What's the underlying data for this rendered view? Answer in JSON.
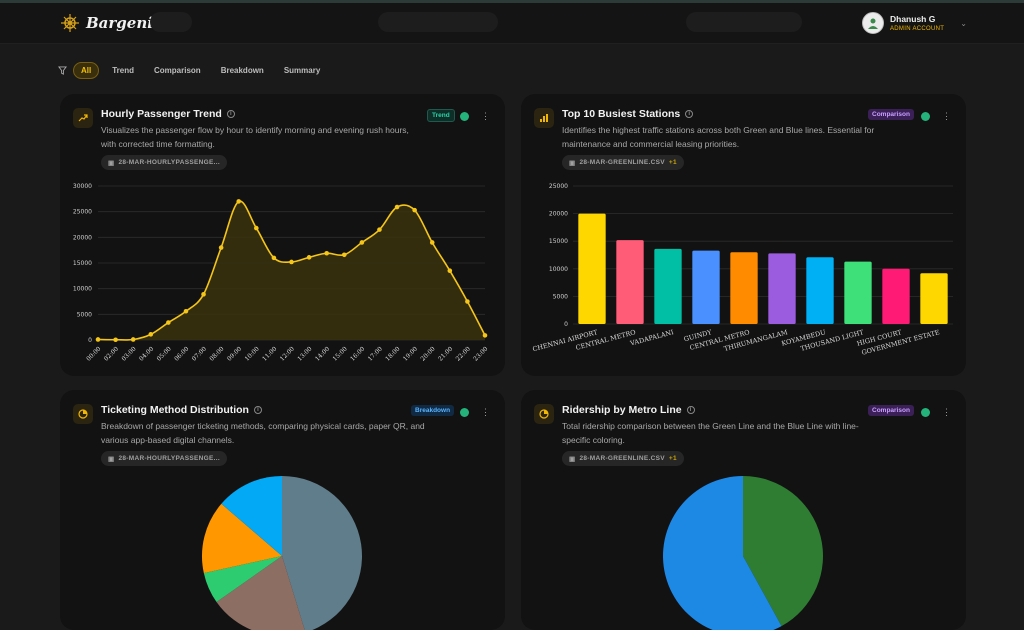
{
  "app": {
    "name": "Bargenic"
  },
  "user": {
    "name": "Dhanush G",
    "role": "ADMIN ACCOUNT"
  },
  "filters": [
    "All",
    "Trend",
    "Comparison",
    "Breakdown",
    "Summary"
  ],
  "cards": {
    "hourly": {
      "title": "Hourly Passenger Trend",
      "badge": "Trend",
      "description_line1": "Visualizes the passenger flow by hour to identify morning and evening rush hours,",
      "description_line2": "with corrected time formatting.",
      "file": "28-MAR-HOURLYPASSENGE..."
    },
    "stations": {
      "title": "Top 10 Busiest Stations",
      "badge": "Comparison",
      "description_line1": "Identifies the highest traffic stations across both Green and Blue lines. Essential for",
      "description_line2": "maintenance and commercial leasing priorities.",
      "file": "28-MAR-GREENLINE.CSV",
      "file_extra": "+1"
    },
    "ticketing": {
      "title": "Ticketing Method Distribution",
      "badge": "Breakdown",
      "description_line1": "Breakdown of passenger ticketing methods, comparing physical cards, paper QR, and",
      "description_line2": "various app-based digital channels.",
      "file": "28-MAR-HOURLYPASSENGE..."
    },
    "ridership": {
      "title": "Ridership by Metro Line",
      "badge": "Comparison",
      "description_line1": "Total ridership comparison between the Green Line and the Blue Line with line-",
      "description_line2": "specific coloring.",
      "file": "28-MAR-GREENLINE.CSV",
      "file_extra": "+1"
    }
  },
  "colors": {
    "accent": "#f2c00a",
    "background": "#1a1a1a",
    "card": "#121212"
  },
  "chart_data": [
    {
      "type": "area",
      "x": [
        "00:00",
        "02:00",
        "03:00",
        "04:00",
        "05:00",
        "06:00",
        "07:00",
        "08:00",
        "09:00",
        "10:00",
        "11:00",
        "12:00",
        "13:00",
        "14:00",
        "15:00",
        "16:00",
        "17:00",
        "18:00",
        "19:00",
        "20:00",
        "21:00",
        "22:00",
        "23:00"
      ],
      "values": [
        100,
        50,
        100,
        1100,
        3400,
        5600,
        8900,
        18000,
        27000,
        21800,
        16000,
        15200,
        16100,
        16900,
        16600,
        19000,
        21500,
        25900,
        25300,
        19000,
        13500,
        7500,
        900
      ],
      "ylim": [
        0,
        30000
      ],
      "yticks": [
        0,
        5000,
        10000,
        15000,
        20000,
        25000,
        30000
      ],
      "color": "#f5c518"
    },
    {
      "type": "bar",
      "categories": [
        "CHENNAI AIRPORT",
        "CENTRAL  METRO",
        "VADAPALANI",
        "GUINDY",
        "CENTRAL  METRO",
        "THIRUMANGALAM",
        "KOYAMBEDU",
        "THOUSAND LIGHT",
        "HIGH COURT",
        "GOVERNMENT ESTATE"
      ],
      "values": [
        20000,
        15200,
        13600,
        13300,
        13000,
        12800,
        12100,
        11300,
        10000,
        9200
      ],
      "colors": [
        "#ffd700",
        "#ff5c78",
        "#00bfa5",
        "#4a90ff",
        "#ff8c00",
        "#9c5ce0",
        "#00b0f5",
        "#3ee07a",
        "#ff1a75",
        "#ffd700"
      ],
      "ylim": [
        0,
        25000
      ],
      "yticks": [
        0,
        5000,
        10000,
        15000,
        20000,
        25000
      ]
    },
    {
      "type": "pie",
      "values": [
        43,
        19,
        6,
        14,
        13
      ],
      "colors": [
        "#607d8b",
        "#8d6e63",
        "#2ecc71",
        "#ff9800",
        "#03a9f4"
      ]
    },
    {
      "type": "pie",
      "values": [
        42,
        58
      ],
      "colors": [
        "#2e7d32",
        "#1e88e5"
      ]
    }
  ]
}
